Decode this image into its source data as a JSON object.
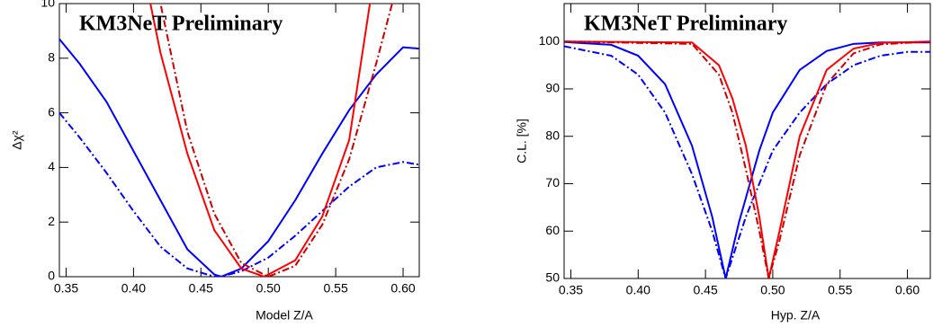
{
  "chart_data": [
    {
      "type": "line",
      "title": "KM3NeT Preliminary",
      "x_label": "Model Z/A",
      "y_label": "Δχ²",
      "xlim": [
        0.345,
        0.612
      ],
      "ylim": [
        0,
        10
      ],
      "xticks": [
        0.35,
        {
          "value": 0.4,
          "label": "0.40"
        },
        0.45,
        {
          "value": 0.5,
          "label": "0.50"
        },
        0.55,
        {
          "value": 0.6,
          "label": "0.60"
        }
      ],
      "yticks": [
        0,
        2,
        4,
        6,
        8,
        10
      ],
      "series": [
        {
          "color": "#0000ff",
          "dash": "solid",
          "x": [
            0.345,
            0.36,
            0.38,
            0.4,
            0.42,
            0.44,
            0.46,
            0.465,
            0.48,
            0.5,
            0.52,
            0.54,
            0.56,
            0.58,
            0.6,
            0.612
          ],
          "values": [
            8.7,
            7.8,
            6.4,
            4.6,
            2.8,
            1.0,
            0.08,
            0,
            0.3,
            1.3,
            2.8,
            4.5,
            6.1,
            7.4,
            8.4,
            8.35
          ]
        },
        {
          "color": "#0000ff",
          "dash": "dash-dot",
          "x": [
            0.345,
            0.36,
            0.38,
            0.4,
            0.42,
            0.44,
            0.46,
            0.465,
            0.48,
            0.5,
            0.52,
            0.54,
            0.56,
            0.58,
            0.6,
            0.612
          ],
          "values": [
            6.0,
            5.1,
            3.8,
            2.4,
            1.1,
            0.3,
            0,
            0.01,
            0.2,
            0.7,
            1.5,
            2.4,
            3.3,
            4.0,
            4.2,
            4.1
          ]
        },
        {
          "color": "#ff0000",
          "dash": "solid",
          "x": [
            0.4,
            0.42,
            0.44,
            0.46,
            0.48,
            0.497,
            0.52,
            0.54,
            0.56,
            0.58
          ],
          "values": [
            13,
            8.2,
            4.5,
            1.7,
            0.3,
            0,
            0.6,
            2.2,
            5.0,
            11.5
          ]
        },
        {
          "color": "#cc0000",
          "dash": "dash-dot",
          "x": [
            0.4,
            0.42,
            0.44,
            0.46,
            0.48,
            0.5,
            0.52,
            0.54,
            0.56,
            0.58,
            0.6
          ],
          "values": [
            14,
            10,
            5.3,
            2.3,
            0.5,
            0,
            0.4,
            1.9,
            4.3,
            7.8,
            11.5
          ]
        }
      ]
    },
    {
      "type": "line",
      "title": "KM3NeT Preliminary",
      "x_label": "Hyp. Z/A",
      "y_label": "C.L. [%]",
      "xlim": [
        0.345,
        0.617
      ],
      "ylim": [
        50,
        108
      ],
      "xticks": [
        0.35,
        {
          "value": 0.4,
          "label": "0.40"
        },
        0.45,
        {
          "value": 0.5,
          "label": "0.50"
        },
        0.55,
        {
          "value": 0.6,
          "label": "0.60"
        }
      ],
      "yticks": [
        50,
        60,
        70,
        80,
        90,
        100
      ],
      "series": [
        {
          "color": "#0000ff",
          "dash": "solid",
          "x": [
            0.345,
            0.38,
            0.4,
            0.42,
            0.44,
            0.455,
            0.465,
            0.475,
            0.49,
            0.5,
            0.52,
            0.54,
            0.56,
            0.58,
            0.617
          ],
          "values": [
            99.9,
            99.3,
            97,
            91,
            78,
            63,
            50,
            62,
            77,
            85,
            94,
            98,
            99.5,
            99.8,
            99.8
          ]
        },
        {
          "color": "#0000ff",
          "dash": "dash-dot",
          "x": [
            0.345,
            0.38,
            0.4,
            0.42,
            0.44,
            0.455,
            0.465,
            0.48,
            0.5,
            0.52,
            0.54,
            0.56,
            0.58,
            0.6,
            0.617
          ],
          "values": [
            99,
            97,
            93,
            85,
            72,
            60,
            50,
            63,
            77,
            85,
            91,
            95,
            97,
            97.8,
            97.8
          ]
        },
        {
          "color": "#ff0000",
          "dash": "solid",
          "x": [
            0.345,
            0.44,
            0.46,
            0.47,
            0.48,
            0.49,
            0.497,
            0.505,
            0.52,
            0.54,
            0.56,
            0.58,
            0.617
          ],
          "values": [
            100,
            99.8,
            95,
            88,
            78,
            63,
            50,
            60,
            80,
            94,
            98.5,
            99.7,
            100
          ]
        },
        {
          "color": "#cc0000",
          "dash": "dash-dot",
          "x": [
            0.345,
            0.44,
            0.46,
            0.47,
            0.48,
            0.49,
            0.497,
            0.505,
            0.52,
            0.54,
            0.56,
            0.58,
            0.617
          ],
          "values": [
            100,
            99.5,
            93,
            85,
            73,
            60,
            50,
            58,
            76,
            91,
            97.5,
            99.4,
            100
          ]
        }
      ]
    }
  ]
}
